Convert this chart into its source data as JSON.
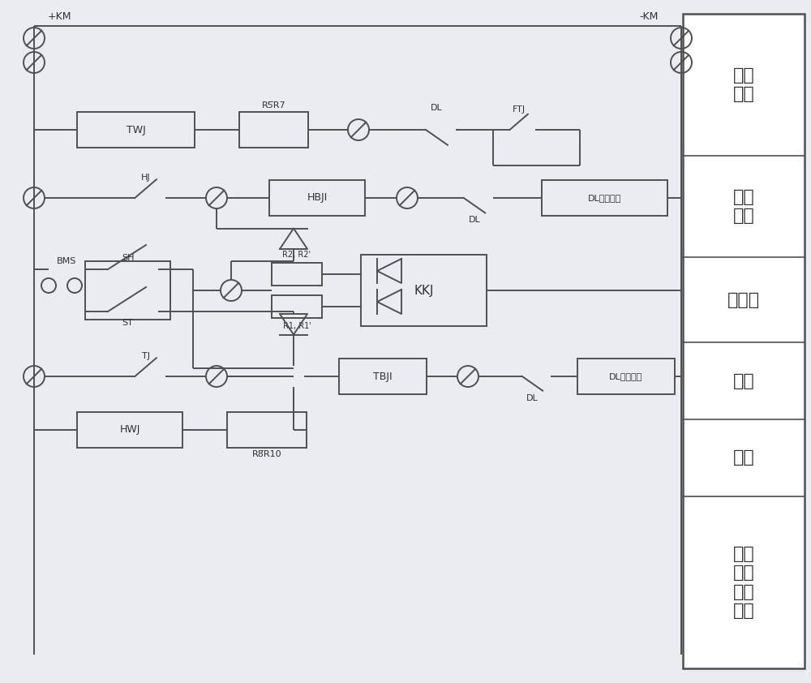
{
  "bg": "#ebebf2",
  "lc": "#505050",
  "tc": "#303030",
  "lw": 1.4,
  "right_labels": [
    "控制\n电源",
    "跳位\n监视",
    "重合闸",
    "手合",
    "手跳",
    "保护\n跳闸\n合位\n监视"
  ],
  "sec_y": [
    8.25,
    6.5,
    5.25,
    4.2,
    3.25,
    2.3,
    0.18
  ],
  "rpx": 8.42,
  "rpw": 1.5
}
